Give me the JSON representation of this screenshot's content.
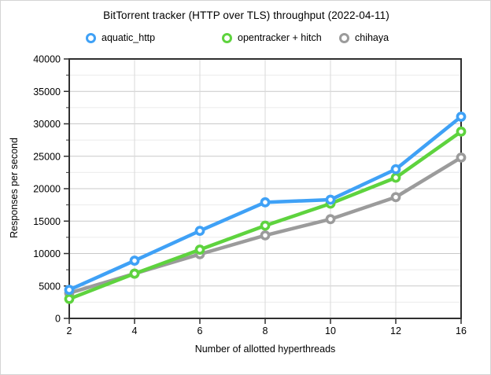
{
  "title": "BitTorrent tracker (HTTP over TLS) throughput (2022-04-11)",
  "chart_data": {
    "type": "line",
    "title": "BitTorrent tracker (HTTP over TLS) throughput (2022-04-11)",
    "categories": [
      "2",
      "4",
      "6",
      "8",
      "10",
      "12",
      "16"
    ],
    "series": [
      {
        "name": "aquatic_http",
        "color": "#3FA1F6",
        "values": [
          4400,
          8900,
          13500,
          17900,
          18300,
          23000,
          31100
        ]
      },
      {
        "name": "opentracker + hitch",
        "color": "#5ED33E",
        "values": [
          3000,
          6900,
          10600,
          14300,
          17700,
          21700,
          28800
        ]
      },
      {
        "name": "chihaya",
        "color": "#9B9B9B",
        "values": [
          3900,
          6900,
          9900,
          12800,
          15300,
          18700,
          24800
        ]
      }
    ],
    "xlabel": "Number of allotted hyperthreads",
    "ylabel": "Responses per second",
    "ylim": [
      0,
      40000
    ],
    "y_ticks": [
      0,
      5000,
      10000,
      15000,
      20000,
      25000,
      30000,
      35000,
      40000
    ],
    "y_major_step": 5000,
    "y_minor_step": 2500,
    "grid": true,
    "legend_position": "top",
    "marker": "open-circle",
    "colors": {
      "background": "#ffffff",
      "frame": "#2f2f2f",
      "grid_major": "#c9c9c9",
      "grid_minor": "#ebebeb",
      "grid_vertical": "#d9d9d9"
    }
  }
}
